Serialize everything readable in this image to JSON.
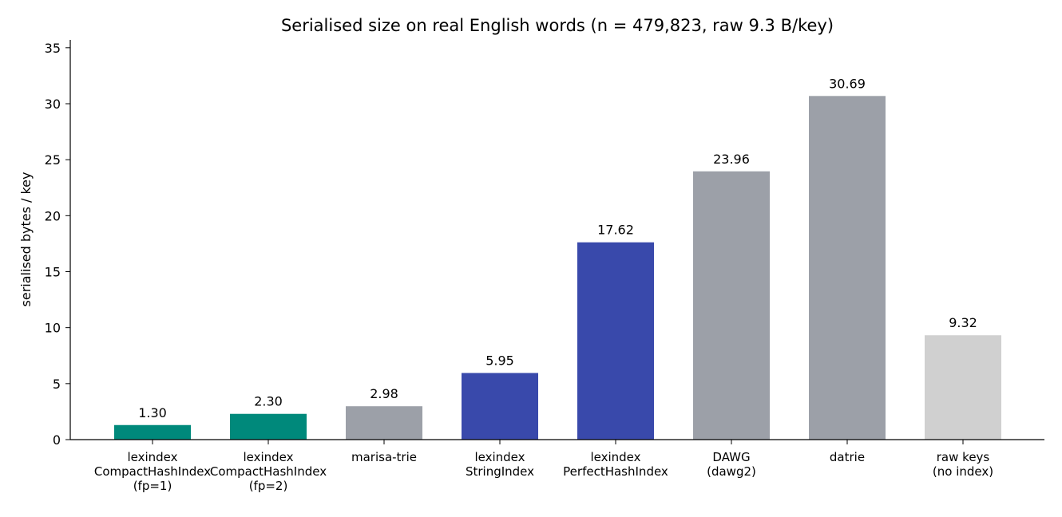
{
  "chart_data": {
    "type": "bar",
    "title": "Serialised size on real English words (n = 479,823, raw 9.3 B/key)",
    "y_label": "serialised bytes / key",
    "categories": [
      "lexindex\nCompactHashIndex\n(fp=1)",
      "lexindex\nCompactHashIndex\n(fp=2)",
      "marisa-trie",
      "lexindex\nStringIndex",
      "lexindex\nPerfectHashIndex",
      "DAWG\n(dawg2)",
      "datrie",
      "raw keys\n(no index)"
    ],
    "values": [
      1.3,
      2.3,
      2.98,
      5.95,
      17.62,
      23.96,
      30.69,
      9.32
    ],
    "value_labels": [
      "1.30",
      "2.30",
      "2.98",
      "5.95",
      "17.62",
      "23.96",
      "30.69",
      "9.32"
    ],
    "colors": [
      "#00897b",
      "#00897b",
      "#9ca0a8",
      "#3949ab",
      "#3949ab",
      "#9ca0a8",
      "#9ca0a8",
      "#d0d0d0"
    ],
    "ylim": [
      0,
      35.7
    ],
    "yticks": [
      0,
      5,
      10,
      15,
      20,
      25,
      30,
      35
    ],
    "grid": false
  }
}
